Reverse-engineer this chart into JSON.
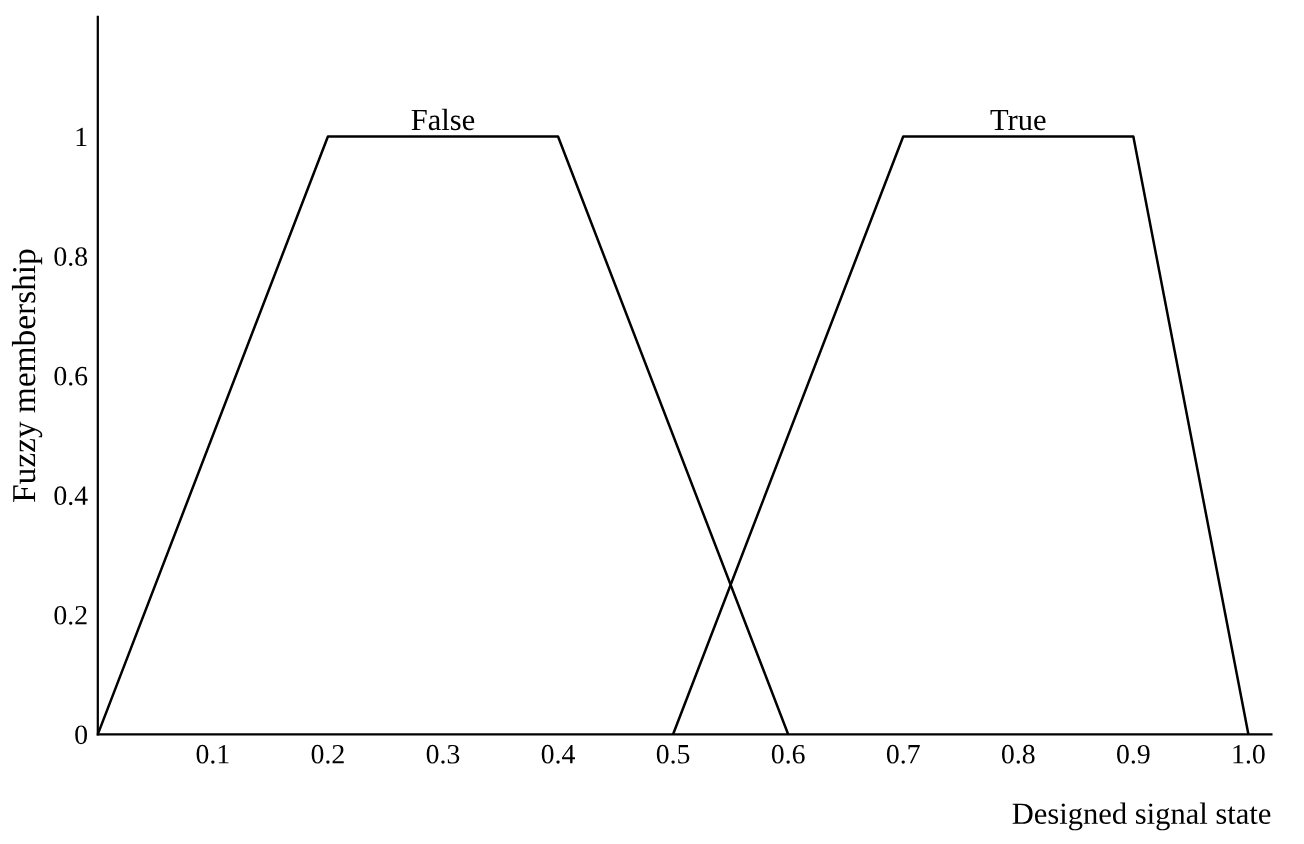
{
  "chart_data": {
    "type": "line",
    "xlabel": "Designed signal state",
    "ylabel": "Fuzzy membership",
    "series": [
      {
        "name": "False",
        "color": "#000000",
        "x": [
          0,
          0.2,
          0.4,
          0.6
        ],
        "values": [
          0,
          1,
          1,
          0
        ]
      },
      {
        "name": "True",
        "color": "#000000",
        "x": [
          0.5,
          0.7,
          0.9,
          1.0
        ],
        "values": [
          0,
          1,
          1,
          0
        ]
      }
    ],
    "xlim": [
      0,
      1.02
    ],
    "ylim": [
      0,
      1.2
    ],
    "xticks": [
      0.1,
      0.2,
      0.3,
      0.4,
      0.5,
      0.6,
      0.7,
      0.8,
      0.9,
      {
        "value": 1.0,
        "label": "1.0"
      }
    ],
    "yticks": [
      0,
      0.2,
      0.4,
      0.6,
      0.8,
      1
    ],
    "grid": false,
    "legend": false,
    "marker": "none",
    "line_style": "solid"
  }
}
